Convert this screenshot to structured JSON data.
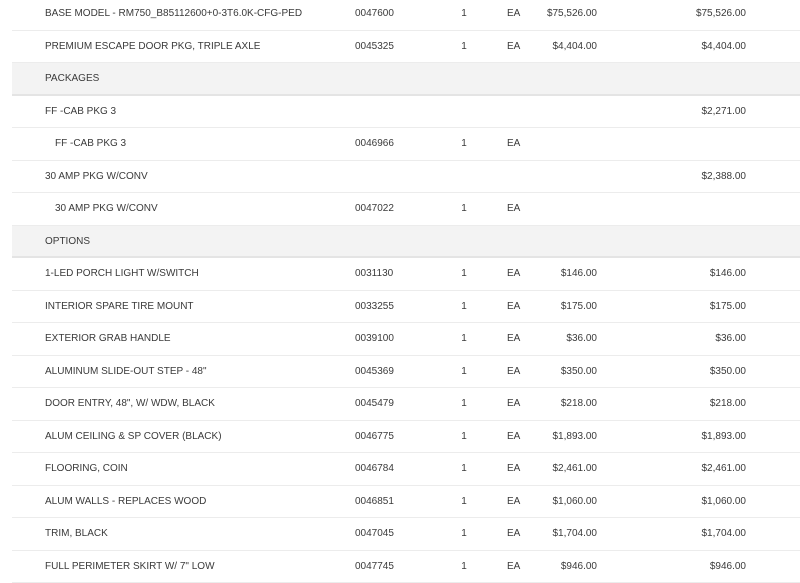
{
  "rows": [
    {
      "type": "item",
      "name": "BASE MODEL - RM750_B85112600+0-3T6.0K-CFG-PED",
      "part": "0047600",
      "qty": "1",
      "uom": "EA",
      "price": "$75,526.00",
      "total": "$75,526.00"
    },
    {
      "type": "item",
      "name": "PREMIUM ESCAPE DOOR PKG, TRIPLE AXLE",
      "part": "0045325",
      "qty": "1",
      "uom": "EA",
      "price": "$4,404.00",
      "total": "$4,404.00"
    },
    {
      "type": "section",
      "name": "PACKAGES"
    },
    {
      "type": "package",
      "name": "FF -CAB PKG 3",
      "total": "$2,271.00"
    },
    {
      "type": "sub",
      "name": "FF -CAB PKG 3",
      "part": "0046966",
      "qty": "1",
      "uom": "EA"
    },
    {
      "type": "package",
      "name": "30 AMP PKG W/CONV",
      "total": "$2,388.00"
    },
    {
      "type": "sub",
      "name": "30 AMP PKG W/CONV",
      "part": "0047022",
      "qty": "1",
      "uom": "EA"
    },
    {
      "type": "section",
      "name": "OPTIONS"
    },
    {
      "type": "item",
      "name": "1-LED PORCH LIGHT W/SWITCH",
      "part": "0031130",
      "qty": "1",
      "uom": "EA",
      "price": "$146.00",
      "total": "$146.00"
    },
    {
      "type": "item",
      "name": "INTERIOR SPARE TIRE MOUNT",
      "part": "0033255",
      "qty": "1",
      "uom": "EA",
      "price": "$175.00",
      "total": "$175.00"
    },
    {
      "type": "item",
      "name": "EXTERIOR GRAB HANDLE",
      "part": "0039100",
      "qty": "1",
      "uom": "EA",
      "price": "$36.00",
      "total": "$36.00"
    },
    {
      "type": "item",
      "name": "ALUMINUM SLIDE-OUT STEP - 48\"",
      "part": "0045369",
      "qty": "1",
      "uom": "EA",
      "price": "$350.00",
      "total": "$350.00"
    },
    {
      "type": "item",
      "name": "DOOR ENTRY, 48\", W/ WDW, BLACK",
      "part": "0045479",
      "qty": "1",
      "uom": "EA",
      "price": "$218.00",
      "total": "$218.00"
    },
    {
      "type": "item",
      "name": "ALUM CEILING & SP COVER (BLACK)",
      "part": "0046775",
      "qty": "1",
      "uom": "EA",
      "price": "$1,893.00",
      "total": "$1,893.00"
    },
    {
      "type": "item",
      "name": "FLOORING, COIN",
      "part": "0046784",
      "qty": "1",
      "uom": "EA",
      "price": "$2,461.00",
      "total": "$2,461.00"
    },
    {
      "type": "item",
      "name": "ALUM WALLS - REPLACES WOOD",
      "part": "0046851",
      "qty": "1",
      "uom": "EA",
      "price": "$1,060.00",
      "total": "$1,060.00"
    },
    {
      "type": "item",
      "name": "TRIM, BLACK",
      "part": "0047045",
      "qty": "1",
      "uom": "EA",
      "price": "$1,704.00",
      "total": "$1,704.00"
    },
    {
      "type": "item",
      "name": "FULL PERIMETER SKIRT W/ 7\" LOW",
      "part": "0047745",
      "qty": "1",
      "uom": "EA",
      "price": "$946.00",
      "total": "$946.00"
    }
  ]
}
